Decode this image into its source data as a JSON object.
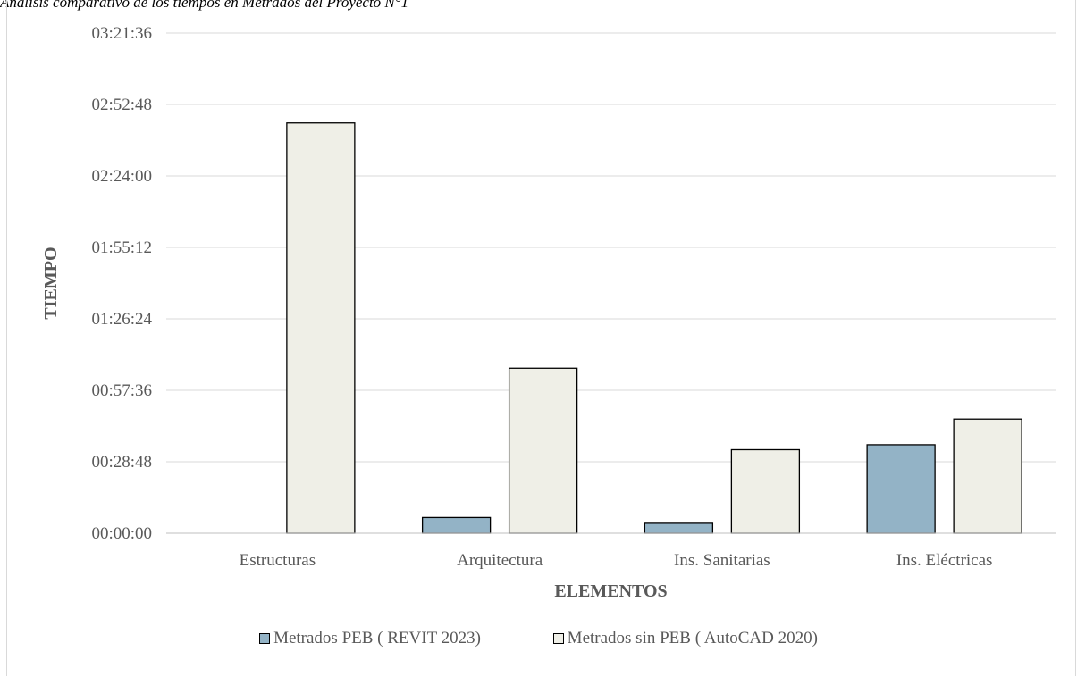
{
  "caption": "Análisis comparativo de los tiempos en Metrados del Proyecto N°1",
  "colors": {
    "revit": "#93b3c6",
    "autocad": "#efefe7",
    "grid": "#d9d9d9",
    "axis_text": "#595959"
  },
  "chart_data": {
    "type": "bar",
    "title": "",
    "xlabel": "ELEMENTOS",
    "ylabel": "TIEMPO",
    "categories": [
      "Estructuras",
      "Arquitectura",
      "Ins. Sanitarias",
      "Ins. Eléctricas"
    ],
    "yticks": [
      "00:00:00",
      "00:28:48",
      "00:57:36",
      "01:26:24",
      "01:55:12",
      "02:24:00",
      "02:52:48",
      "03:21:36"
    ],
    "ylim": [
      0,
      12096
    ],
    "y_unit": "seconds (hh:mm:ss)",
    "grid": true,
    "legend_position": "bottom",
    "series": [
      {
        "name": "Metrados PEB ( REVIT 2023)",
        "color": "#93b3c6",
        "values": [
          0,
          380,
          240,
          2140
        ]
      },
      {
        "name": "Metrados sin PEB ( AutoCAD 2020)",
        "color": "#efefe7",
        "values": [
          9920,
          3990,
          2020,
          2760
        ]
      }
    ]
  }
}
